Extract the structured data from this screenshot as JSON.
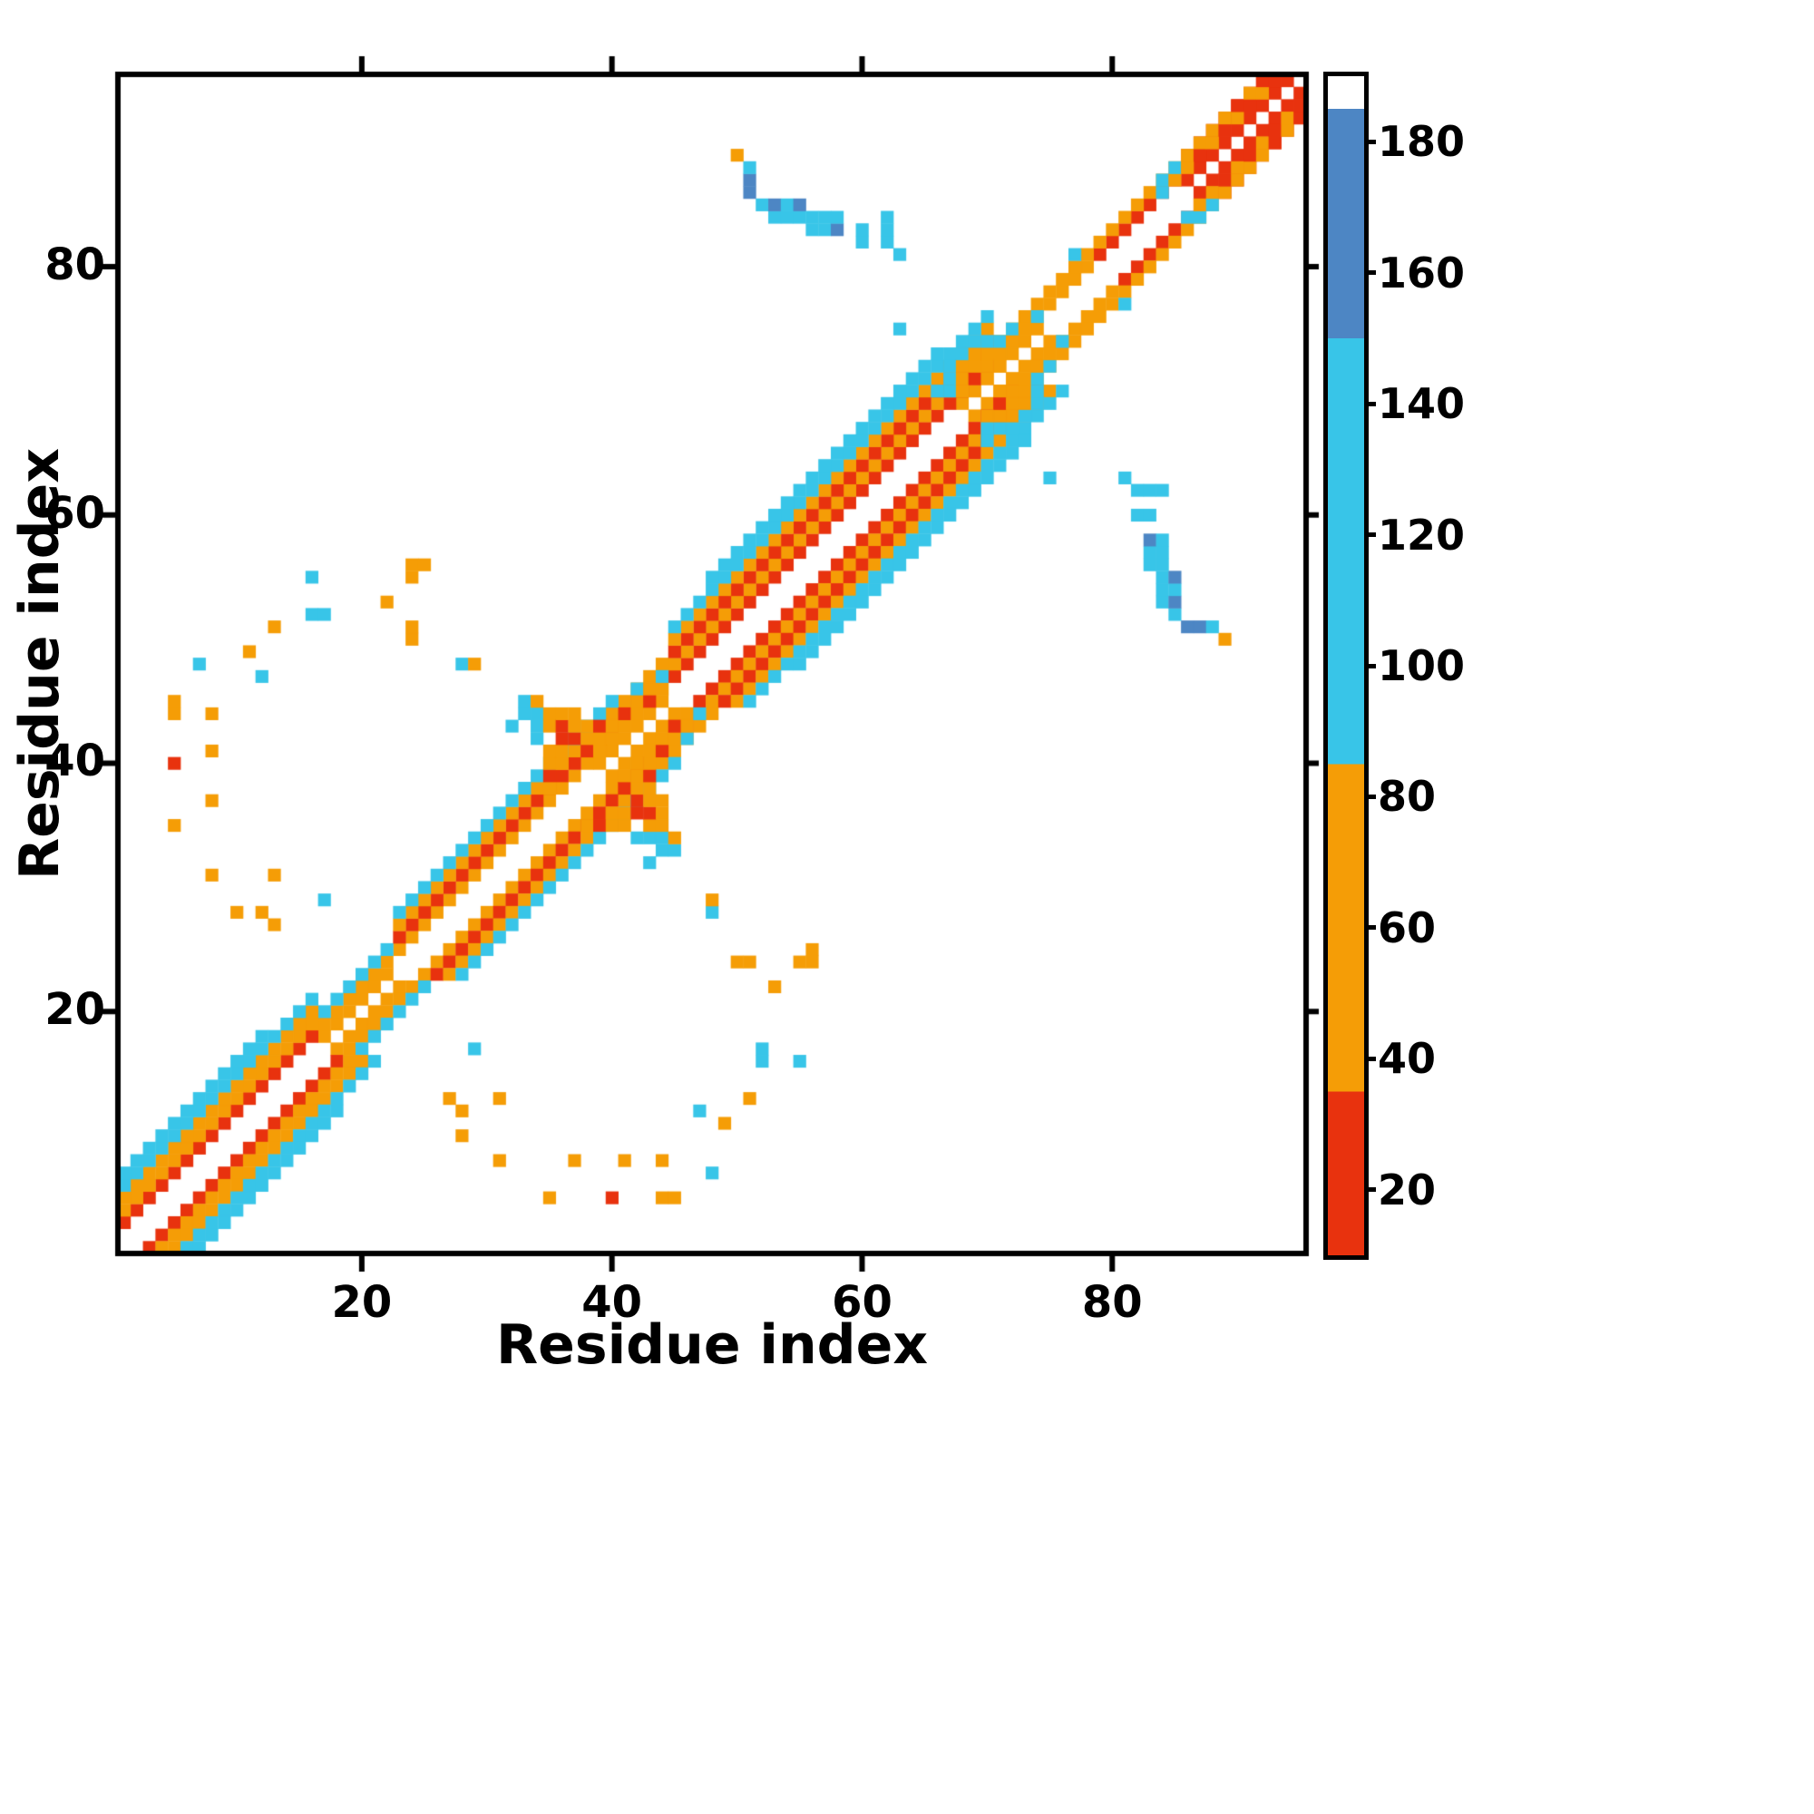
{
  "figure": {
    "background": "#ffffff"
  },
  "chart_data": {
    "type": "heatmap",
    "title": "",
    "xlabel": "Residue index",
    "ylabel": "Residue index",
    "n_residues": 95,
    "axis_range": [
      0.5,
      95.5
    ],
    "x_ticks": [
      20,
      40,
      60,
      80
    ],
    "y_ticks": [
      20,
      40,
      60,
      80
    ],
    "grid": false,
    "symmetric": true,
    "legend_position": "colorbar-right",
    "colormap": {
      "vmin": 10,
      "vmax": 190,
      "thresholds": [
        35,
        85,
        150,
        185
      ],
      "colors": [
        "#e8320e",
        "#f59d06",
        "#38c5e8",
        "#4d86c4",
        "#ffffff"
      ]
    },
    "colorbar_ticks": [
      20,
      40,
      60,
      80,
      100,
      120,
      140,
      160,
      180
    ],
    "bands": [
      {
        "i0": 17,
        "i1": 22,
        "offset": 1,
        "v": 60
      },
      {
        "i0": 39,
        "i1": 44,
        "offset": 1,
        "v": 40
      },
      {
        "i0": 68,
        "i1": 74,
        "offset": 1,
        "v": 60
      },
      {
        "i0": 86,
        "i1": 94,
        "offset": 1,
        "v": 25
      },
      {
        "i0": 1,
        "i1": 16,
        "offset": 2,
        "v": 25
      },
      {
        "i0": 17,
        "i1": 22,
        "offset": 2,
        "v": 60
      },
      {
        "i0": 23,
        "i1": 44,
        "offset": 2,
        "v": 60
      },
      {
        "i0": 45,
        "i1": 70,
        "offset": 2,
        "v": 25
      },
      {
        "i0": 71,
        "i1": 78,
        "offset": 2,
        "v": 60
      },
      {
        "i0": 79,
        "i1": 93,
        "offset": 2,
        "v": 25
      },
      {
        "i0": 1,
        "i1": 16,
        "offset": 3,
        "v": 60
      },
      {
        "i0": 17,
        "i1": 22,
        "offset": 3,
        "v": 110
      },
      {
        "i0": 23,
        "i1": 44,
        "offset": 3,
        "v": 25
      },
      {
        "i0": 45,
        "i1": 70,
        "offset": 3,
        "v": 60
      },
      {
        "i0": 71,
        "i1": 85,
        "offset": 3,
        "v": 60
      },
      {
        "i0": 86,
        "i1": 92,
        "offset": 3,
        "v": 25
      },
      {
        "i0": 1,
        "i1": 16,
        "offset": 4,
        "v": 60
      },
      {
        "i0": 23,
        "i1": 44,
        "offset": 4,
        "v": 60
      },
      {
        "i0": 45,
        "i1": 70,
        "offset": 4,
        "v": 30
      },
      {
        "i0": 1,
        "i1": 16,
        "offset": 5,
        "v": 110
      },
      {
        "i0": 23,
        "i1": 40,
        "offset": 5,
        "v": 110
      },
      {
        "i0": 45,
        "i1": 70,
        "offset": 5,
        "v": 60
      },
      {
        "i0": 1,
        "i1": 12,
        "offset": 6,
        "v": 110
      },
      {
        "i0": 45,
        "i1": 70,
        "offset": 6,
        "v": 110
      },
      {
        "i0": 48,
        "i1": 66,
        "offset": 7,
        "v": 110
      }
    ],
    "points": [
      [
        50,
        89,
        40
      ],
      [
        51,
        86,
        165
      ],
      [
        51,
        87,
        165
      ],
      [
        51,
        88,
        120
      ],
      [
        52,
        85,
        110
      ],
      [
        53,
        84,
        110
      ],
      [
        53,
        85,
        165
      ],
      [
        54,
        84,
        110
      ],
      [
        54,
        85,
        110
      ],
      [
        55,
        84,
        110
      ],
      [
        55,
        85,
        165
      ],
      [
        56,
        83,
        110
      ],
      [
        56,
        84,
        110
      ],
      [
        57,
        83,
        110
      ],
      [
        57,
        84,
        110
      ],
      [
        58,
        83,
        165
      ],
      [
        58,
        84,
        110
      ],
      [
        60,
        82,
        110
      ],
      [
        60,
        83,
        110
      ],
      [
        62,
        82,
        110
      ],
      [
        62,
        83,
        120
      ],
      [
        62,
        84,
        110
      ],
      [
        63,
        81,
        110
      ],
      [
        63,
        75,
        110
      ],
      [
        5,
        35,
        60
      ],
      [
        5,
        40,
        25
      ],
      [
        5,
        44,
        60
      ],
      [
        5,
        45,
        60
      ],
      [
        7,
        48,
        110
      ],
      [
        8,
        31,
        60
      ],
      [
        8,
        37,
        60
      ],
      [
        8,
        41,
        40
      ],
      [
        8,
        44,
        60
      ],
      [
        10,
        28,
        60
      ],
      [
        11,
        49,
        60
      ],
      [
        12,
        28,
        60
      ],
      [
        12,
        47,
        110
      ],
      [
        13,
        27,
        60
      ],
      [
        13,
        31,
        60
      ],
      [
        13,
        51,
        60
      ],
      [
        16,
        52,
        110
      ],
      [
        16,
        55,
        110
      ],
      [
        17,
        29,
        110
      ],
      [
        17,
        52,
        110
      ],
      [
        22,
        53,
        60
      ],
      [
        24,
        50,
        60
      ],
      [
        24,
        51,
        60
      ],
      [
        24,
        55,
        60
      ],
      [
        24,
        56,
        60
      ],
      [
        25,
        56,
        60
      ],
      [
        28,
        48,
        110
      ],
      [
        29,
        48,
        60
      ],
      [
        32,
        43,
        110
      ],
      [
        33,
        44,
        110
      ],
      [
        33,
        45,
        110
      ],
      [
        34,
        42,
        110
      ],
      [
        34,
        43,
        110
      ],
      [
        34,
        44,
        110
      ],
      [
        34,
        45,
        60
      ],
      [
        35,
        38,
        60
      ],
      [
        35,
        39,
        25
      ],
      [
        35,
        40,
        40
      ],
      [
        35,
        41,
        60
      ],
      [
        35,
        43,
        60
      ],
      [
        35,
        44,
        40
      ],
      [
        36,
        40,
        60
      ],
      [
        36,
        41,
        40
      ],
      [
        36,
        42,
        25
      ],
      [
        36,
        43,
        25
      ],
      [
        36,
        44,
        60
      ],
      [
        37,
        42,
        25
      ],
      [
        37,
        43,
        60
      ],
      [
        37,
        44,
        60
      ],
      [
        38,
        41,
        25
      ],
      [
        38,
        42,
        60
      ],
      [
        38,
        43,
        60
      ],
      [
        39,
        41,
        40
      ],
      [
        39,
        42,
        60
      ],
      [
        39,
        43,
        25
      ],
      [
        40,
        42,
        60
      ],
      [
        40,
        43,
        60
      ],
      [
        41,
        43,
        40
      ],
      [
        41,
        44,
        25
      ],
      [
        42,
        44,
        60
      ],
      [
        42,
        45,
        40
      ],
      [
        42,
        46,
        110
      ],
      [
        43,
        45,
        25
      ],
      [
        43,
        46,
        60
      ],
      [
        44,
        46,
        40
      ],
      [
        44,
        47,
        110
      ],
      [
        66,
        70,
        110
      ],
      [
        67,
        70,
        110
      ],
      [
        67,
        71,
        110
      ],
      [
        67,
        72,
        110
      ],
      [
        68,
        70,
        60
      ],
      [
        68,
        71,
        40
      ],
      [
        68,
        72,
        60
      ],
      [
        68,
        73,
        110
      ],
      [
        69,
        71,
        25
      ],
      [
        69,
        72,
        40
      ],
      [
        69,
        73,
        60
      ],
      [
        69,
        74,
        110
      ],
      [
        70,
        71,
        60
      ],
      [
        70,
        72,
        60
      ],
      [
        70,
        73,
        40
      ],
      [
        70,
        74,
        110
      ],
      [
        71,
        72,
        40
      ],
      [
        71,
        73,
        60
      ],
      [
        71,
        74,
        110
      ],
      [
        72,
        74,
        60
      ],
      [
        72,
        75,
        110
      ],
      [
        73,
        75,
        60
      ],
      [
        74,
        76,
        110
      ],
      [
        77,
        81,
        110
      ],
      [
        84,
        86,
        110
      ],
      [
        84,
        87,
        110
      ],
      [
        85,
        87,
        60
      ],
      [
        85,
        88,
        110
      ],
      [
        86,
        88,
        60
      ],
      [
        86,
        89,
        40
      ],
      [
        87,
        89,
        25
      ],
      [
        87,
        90,
        60
      ],
      [
        88,
        90,
        40
      ],
      [
        88,
        91,
        60
      ],
      [
        89,
        91,
        25
      ],
      [
        89,
        92,
        40
      ],
      [
        90,
        92,
        60
      ],
      [
        90,
        93,
        25
      ],
      [
        91,
        93,
        25
      ],
      [
        91,
        94,
        40
      ],
      [
        92,
        94,
        60
      ],
      [
        92,
        95,
        25
      ],
      [
        93,
        95,
        25
      ]
    ]
  }
}
